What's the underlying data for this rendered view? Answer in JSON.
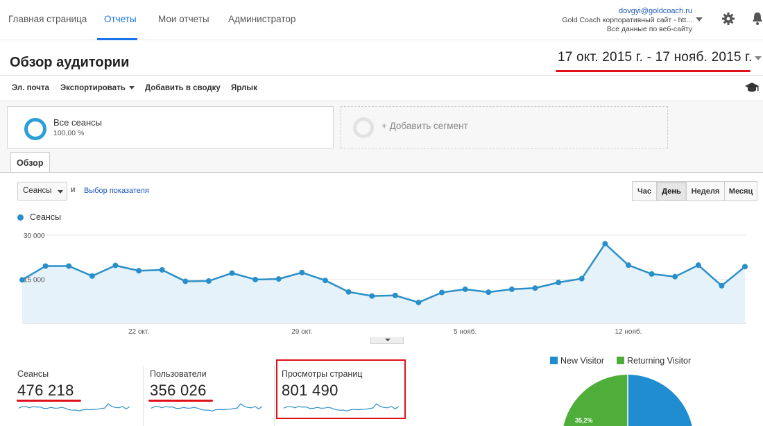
{
  "nav": {
    "tabs": [
      "Главная страница",
      "Отчеты",
      "Мои отчеты",
      "Администратор"
    ],
    "active_tab": "Отчеты"
  },
  "account": {
    "email": "dovgyi@goldcoach.ru",
    "site": "Gold Coach корпоративный сайт - htt...",
    "view": "Все данные по веб-сайту"
  },
  "page": {
    "title": "Обзор аудитории",
    "date_range": "17 окт. 2015 г. - 17 нояб. 2015 г."
  },
  "toolbar": {
    "email": "Эл. почта",
    "export": "Экспортировать",
    "add_to_dashboard": "Добавить в сводку",
    "shortcut": "Ярлык"
  },
  "segments": {
    "active_name": "Все сеансы",
    "active_pct": "100,00 %",
    "add_label": "+ Добавить сегмент"
  },
  "tabs": {
    "overview": "Обзор"
  },
  "controls": {
    "metric_select": "Сеансы",
    "and": "и",
    "choose_metric": "Выбор показателя",
    "periods": [
      "Час",
      "День",
      "Неделя",
      "Месяц"
    ],
    "active_period": "День"
  },
  "chart_data": {
    "type": "line",
    "series": [
      {
        "name": "Сеансы",
        "values": [
          14800,
          19500,
          19500,
          16100,
          19700,
          17900,
          18200,
          14300,
          14400,
          17100,
          14900,
          15100,
          17300,
          14600,
          10700,
          9300,
          9500,
          7100,
          10500,
          11600,
          10600,
          11600,
          12000,
          13900,
          15200,
          27100,
          19800,
          16800,
          15900,
          19800,
          12800,
          19300
        ]
      }
    ],
    "x_tick_labels": [
      "22 окт.",
      "29 окт.",
      "5 нояб.",
      "12 нояб."
    ],
    "y_tick_labels": [
      "30 000",
      "15 000"
    ],
    "ylim": [
      0,
      30000
    ],
    "grid": true,
    "line_color": "#2a8fc9",
    "fill_color": "#e6f2f9"
  },
  "metrics": [
    {
      "label": "Сеансы",
      "value": "476 218"
    },
    {
      "label": "Пользователи",
      "value": "356 026"
    },
    {
      "label": "Просмотры страниц",
      "value": "801 490"
    }
  ],
  "pie": {
    "legend": [
      {
        "label": "New Visitor",
        "color": "#1f8dd0"
      },
      {
        "label": "Returning Visitor",
        "color": "#4fae3a"
      }
    ],
    "returning_pct_label": "35,2%",
    "returning_fraction": 0.352
  }
}
